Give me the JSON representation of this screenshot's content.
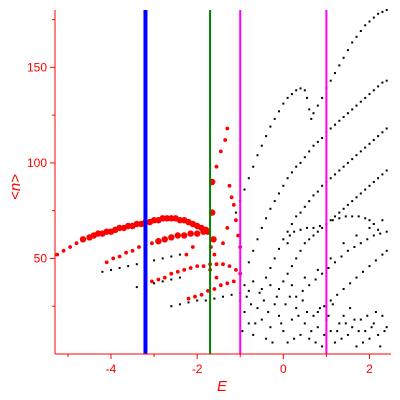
{
  "chart_data": {
    "type": "scatter",
    "title": "",
    "xlabel": "E",
    "ylabel": "<n>",
    "xlim": [
      -5.3,
      2.5
    ],
    "ylim": [
      0,
      180
    ],
    "xticks": [
      -4,
      -2,
      0,
      2
    ],
    "xtick_labels": [
      "-4",
      "-2",
      "0",
      "2"
    ],
    "yticks": [
      50,
      100,
      150
    ],
    "ytick_labels": [
      "50",
      "100",
      "150"
    ],
    "grid": false,
    "legend": "none",
    "colors": {
      "axes": "#ff0000",
      "red_series": "#ff0000",
      "black_series": "#000000",
      "blue_line": "#0000ff",
      "green_line": "#008000",
      "magenta_line": "#ff00ff"
    },
    "vertical_lines": [
      {
        "x": -3.2,
        "color": "blue",
        "width": "thick"
      },
      {
        "x": -1.7,
        "color": "green",
        "width": "thin"
      },
      {
        "x": -1.0,
        "color": "magenta",
        "width": "thin"
      },
      {
        "x": 1.0,
        "color": "magenta",
        "width": "thin"
      }
    ],
    "red_points": [
      [
        -5.25,
        52
      ],
      [
        -5.1,
        54
      ],
      [
        -4.95,
        56
      ],
      [
        -4.8,
        58
      ],
      [
        -4.65,
        60
      ],
      [
        -4.5,
        61
      ],
      [
        -4.4,
        62
      ],
      [
        -4.3,
        63
      ],
      [
        -4.2,
        63
      ],
      [
        -4.1,
        64
      ],
      [
        -4.0,
        64
      ],
      [
        -3.9,
        65
      ],
      [
        -3.8,
        66
      ],
      [
        -3.7,
        66
      ],
      [
        -3.6,
        67
      ],
      [
        -3.5,
        67
      ],
      [
        -3.4,
        68
      ],
      [
        -3.3,
        68
      ],
      [
        -3.2,
        69
      ],
      [
        -3.1,
        69
      ],
      [
        -3.0,
        70
      ],
      [
        -2.9,
        70
      ],
      [
        -2.8,
        71
      ],
      [
        -2.7,
        71
      ],
      [
        -2.6,
        71
      ],
      [
        -2.5,
        71
      ],
      [
        -2.4,
        70
      ],
      [
        -2.3,
        70
      ],
      [
        -2.2,
        69
      ],
      [
        -2.1,
        68
      ],
      [
        -2.0,
        67
      ],
      [
        -1.9,
        66
      ],
      [
        -1.8,
        65
      ],
      [
        -4.1,
        48
      ],
      [
        -3.95,
        50
      ],
      [
        -3.8,
        51
      ],
      [
        -3.65,
        53
      ],
      [
        -3.5,
        54
      ],
      [
        -3.35,
        56
      ],
      [
        -3.2,
        57
      ],
      [
        -3.05,
        58
      ],
      [
        -2.9,
        59
      ],
      [
        -2.75,
        60
      ],
      [
        -2.6,
        61
      ],
      [
        -2.45,
        62
      ],
      [
        -2.3,
        62
      ],
      [
        -2.15,
        63
      ],
      [
        -2.0,
        63
      ],
      [
        -1.85,
        64
      ],
      [
        -1.75,
        64
      ],
      [
        -3.2,
        37
      ],
      [
        -3.05,
        38
      ],
      [
        -2.9,
        39
      ],
      [
        -2.75,
        40
      ],
      [
        -2.6,
        42
      ],
      [
        -2.45,
        43
      ],
      [
        -2.3,
        44
      ],
      [
        -2.15,
        45
      ],
      [
        -2.0,
        46
      ],
      [
        -1.85,
        46
      ],
      [
        -1.7,
        47
      ],
      [
        -1.55,
        47
      ],
      [
        -1.4,
        47
      ],
      [
        -1.25,
        46
      ],
      [
        -1.1,
        44
      ],
      [
        -1.0,
        42
      ],
      [
        -2.2,
        29
      ],
      [
        -2.05,
        30
      ],
      [
        -1.9,
        31
      ],
      [
        -1.75,
        33
      ],
      [
        -1.6,
        34
      ],
      [
        -1.45,
        36
      ],
      [
        -1.3,
        37
      ],
      [
        -1.15,
        38
      ],
      [
        -1.65,
        90
      ],
      [
        -1.55,
        98
      ],
      [
        -1.45,
        106
      ],
      [
        -1.35,
        112
      ],
      [
        -1.3,
        118
      ],
      [
        -1.25,
        88
      ],
      [
        -1.2,
        82
      ],
      [
        -1.15,
        78
      ],
      [
        -1.1,
        70
      ],
      [
        -1.05,
        62
      ],
      [
        -1.0,
        56
      ],
      [
        -1.65,
        74
      ],
      [
        -1.62,
        60
      ],
      [
        -1.68,
        56
      ],
      [
        -1.6,
        52
      ],
      [
        -1.7,
        44
      ],
      [
        -1.55,
        40
      ],
      [
        -2.25,
        52
      ],
      [
        -2.1,
        56
      ],
      [
        -1.4,
        58
      ],
      [
        -1.3,
        66
      ]
    ],
    "black_points": [
      [
        -4.2,
        43
      ],
      [
        -4.0,
        44
      ],
      [
        -3.8,
        45
      ],
      [
        -3.6,
        46
      ],
      [
        -3.4,
        47
      ],
      [
        -3.2,
        48
      ],
      [
        -3.0,
        49
      ],
      [
        -2.8,
        50
      ],
      [
        -2.6,
        51
      ],
      [
        -2.4,
        52
      ],
      [
        -3.4,
        35
      ],
      [
        -3.2,
        36
      ],
      [
        -3.0,
        37
      ],
      [
        -2.8,
        38
      ],
      [
        -2.6,
        39
      ],
      [
        -2.4,
        40
      ],
      [
        -2.6,
        25
      ],
      [
        -2.4,
        26
      ],
      [
        -2.2,
        27
      ],
      [
        -2.0,
        28
      ],
      [
        -1.8,
        28
      ],
      [
        -1.6,
        29
      ],
      [
        -1.4,
        30
      ],
      [
        -1.2,
        31
      ],
      [
        -1.0,
        32
      ],
      [
        -0.8,
        33
      ],
      [
        -1.1,
        74
      ],
      [
        -1.0,
        80
      ],
      [
        -0.9,
        86
      ],
      [
        -0.8,
        92
      ],
      [
        -0.7,
        98
      ],
      [
        -0.6,
        104
      ],
      [
        -0.5,
        109
      ],
      [
        -0.4,
        114
      ],
      [
        -0.3,
        119
      ],
      [
        -0.2,
        123
      ],
      [
        -0.1,
        127
      ],
      [
        0.0,
        131
      ],
      [
        0.1,
        134
      ],
      [
        0.2,
        136
      ],
      [
        0.3,
        138
      ],
      [
        0.4,
        139
      ],
      [
        0.5,
        138
      ],
      [
        0.55,
        134
      ],
      [
        0.6,
        128
      ],
      [
        0.65,
        123
      ],
      [
        0.7,
        126
      ],
      [
        0.8,
        130
      ],
      [
        0.9,
        134
      ],
      [
        1.0,
        139
      ],
      [
        1.1,
        143
      ],
      [
        1.2,
        147
      ],
      [
        1.3,
        151
      ],
      [
        1.4,
        155
      ],
      [
        1.5,
        159
      ],
      [
        1.6,
        163
      ],
      [
        1.7,
        166
      ],
      [
        1.8,
        169
      ],
      [
        1.9,
        172
      ],
      [
        2.0,
        174
      ],
      [
        2.1,
        176
      ],
      [
        2.2,
        178
      ],
      [
        2.3,
        179
      ],
      [
        2.4,
        180
      ],
      [
        -0.8,
        48
      ],
      [
        -0.7,
        54
      ],
      [
        -0.6,
        60
      ],
      [
        -0.5,
        66
      ],
      [
        -0.4,
        71
      ],
      [
        -0.3,
        76
      ],
      [
        -0.2,
        80
      ],
      [
        -0.1,
        84
      ],
      [
        0.0,
        88
      ],
      [
        0.1,
        92
      ],
      [
        0.2,
        95
      ],
      [
        0.3,
        98
      ],
      [
        0.4,
        100
      ],
      [
        0.5,
        103
      ],
      [
        0.6,
        106
      ],
      [
        0.7,
        109
      ],
      [
        0.8,
        111
      ],
      [
        0.9,
        113
      ],
      [
        1.0,
        116
      ],
      [
        1.1,
        118
      ],
      [
        1.2,
        120
      ],
      [
        1.3,
        122
      ],
      [
        1.4,
        124
      ],
      [
        1.5,
        126
      ],
      [
        1.6,
        128
      ],
      [
        1.7,
        130
      ],
      [
        1.8,
        132
      ],
      [
        1.9,
        134
      ],
      [
        2.0,
        136
      ],
      [
        2.1,
        138
      ],
      [
        2.2,
        140
      ],
      [
        2.3,
        142
      ],
      [
        2.4,
        143
      ],
      [
        -0.4,
        40
      ],
      [
        -0.3,
        45
      ],
      [
        -0.2,
        50
      ],
      [
        -0.1,
        55
      ],
      [
        0.0,
        60
      ],
      [
        0.1,
        64
      ],
      [
        0.2,
        68
      ],
      [
        0.3,
        72
      ],
      [
        0.4,
        74
      ],
      [
        0.5,
        77
      ],
      [
        0.6,
        80
      ],
      [
        0.7,
        83
      ],
      [
        0.8,
        85
      ],
      [
        0.9,
        88
      ],
      [
        1.0,
        90
      ],
      [
        1.1,
        92
      ],
      [
        1.2,
        94
      ],
      [
        1.3,
        96
      ],
      [
        1.4,
        98
      ],
      [
        1.5,
        100
      ],
      [
        1.6,
        102
      ],
      [
        1.7,
        104
      ],
      [
        1.8,
        106
      ],
      [
        1.9,
        108
      ],
      [
        2.0,
        110
      ],
      [
        2.1,
        112
      ],
      [
        2.2,
        114
      ],
      [
        2.3,
        116
      ],
      [
        2.4,
        118
      ],
      [
        0.0,
        38
      ],
      [
        0.1,
        42
      ],
      [
        0.2,
        46
      ],
      [
        0.3,
        50
      ],
      [
        0.4,
        54
      ],
      [
        0.5,
        58
      ],
      [
        0.6,
        60
      ],
      [
        0.7,
        62
      ],
      [
        0.8,
        64
      ],
      [
        0.9,
        66
      ],
      [
        1.0,
        68
      ],
      [
        1.1,
        70
      ],
      [
        1.2,
        72
      ],
      [
        1.3,
        74
      ],
      [
        1.4,
        76
      ],
      [
        1.5,
        78
      ],
      [
        1.6,
        80
      ],
      [
        1.7,
        82
      ],
      [
        1.8,
        84
      ],
      [
        1.9,
        86
      ],
      [
        2.0,
        88
      ],
      [
        2.1,
        90
      ],
      [
        2.2,
        92
      ],
      [
        2.3,
        94
      ],
      [
        2.4,
        96
      ],
      [
        0.1,
        58
      ],
      [
        0.15,
        62
      ],
      [
        0.25,
        64
      ],
      [
        0.4,
        65
      ],
      [
        0.55,
        66
      ],
      [
        0.7,
        66
      ],
      [
        0.85,
        67
      ],
      [
        1.0,
        68
      ],
      [
        1.15,
        70
      ],
      [
        1.3,
        71
      ],
      [
        1.45,
        72
      ],
      [
        1.6,
        72
      ],
      [
        1.75,
        72
      ],
      [
        1.9,
        71
      ],
      [
        2.0,
        70
      ],
      [
        2.1,
        68
      ],
      [
        2.2,
        65
      ],
      [
        0.3,
        30
      ],
      [
        0.45,
        33
      ],
      [
        0.6,
        36
      ],
      [
        0.75,
        39
      ],
      [
        0.9,
        42
      ],
      [
        1.05,
        45
      ],
      [
        1.2,
        48
      ],
      [
        1.35,
        51
      ],
      [
        1.5,
        54
      ],
      [
        1.65,
        56
      ],
      [
        1.8,
        58
      ],
      [
        1.95,
        60
      ],
      [
        2.1,
        62
      ],
      [
        2.25,
        63
      ],
      [
        2.4,
        64
      ],
      [
        0.8,
        22
      ],
      [
        0.95,
        25
      ],
      [
        1.1,
        28
      ],
      [
        1.25,
        31
      ],
      [
        1.4,
        34
      ],
      [
        1.55,
        37
      ],
      [
        1.7,
        40
      ],
      [
        1.85,
        43
      ],
      [
        2.0,
        46
      ],
      [
        2.15,
        49
      ],
      [
        2.3,
        52
      ],
      [
        2.4,
        54
      ],
      [
        -1.0,
        28
      ],
      [
        -0.9,
        22
      ],
      [
        -0.8,
        16
      ],
      [
        -0.7,
        10
      ],
      [
        -0.6,
        24
      ],
      [
        -0.5,
        18
      ],
      [
        -0.4,
        8
      ],
      [
        -0.3,
        14
      ],
      [
        -0.2,
        26
      ],
      [
        -0.1,
        20
      ],
      [
        0.0,
        12
      ],
      [
        0.1,
        6
      ],
      [
        0.2,
        18
      ],
      [
        0.3,
        24
      ],
      [
        0.4,
        10
      ],
      [
        0.5,
        16
      ],
      [
        0.6,
        8
      ],
      [
        0.7,
        20
      ],
      [
        0.8,
        14
      ],
      [
        0.9,
        4
      ],
      [
        1.0,
        18
      ],
      [
        1.1,
        12
      ],
      [
        1.2,
        6
      ],
      [
        1.3,
        16
      ],
      [
        1.4,
        20
      ],
      [
        1.5,
        10
      ],
      [
        1.6,
        14
      ],
      [
        1.7,
        4
      ],
      [
        1.8,
        18
      ],
      [
        1.9,
        12
      ],
      [
        2.0,
        8
      ],
      [
        2.1,
        16
      ],
      [
        2.2,
        10
      ],
      [
        2.3,
        20
      ],
      [
        2.4,
        14
      ],
      [
        -0.95,
        12
      ],
      [
        -0.85,
        30
      ],
      [
        -0.75,
        26
      ],
      [
        -0.65,
        16
      ],
      [
        -0.55,
        32
      ],
      [
        -0.45,
        28
      ],
      [
        -0.35,
        22
      ],
      [
        -0.25,
        6
      ],
      [
        -0.15,
        30
      ],
      [
        -0.05,
        16
      ],
      [
        0.05,
        26
      ],
      [
        0.15,
        30
      ],
      [
        0.25,
        8
      ],
      [
        0.35,
        20
      ],
      [
        0.45,
        28
      ],
      [
        0.55,
        22
      ],
      [
        0.65,
        12
      ],
      [
        0.75,
        6
      ],
      [
        0.85,
        24
      ],
      [
        0.95,
        10
      ],
      [
        1.05,
        20
      ],
      [
        1.15,
        26
      ],
      [
        1.25,
        12
      ],
      [
        1.35,
        8
      ],
      [
        1.45,
        16
      ],
      [
        1.55,
        24
      ],
      [
        1.65,
        18
      ],
      [
        1.75,
        12
      ],
      [
        1.85,
        6
      ],
      [
        1.95,
        20
      ],
      [
        2.05,
        14
      ],
      [
        2.15,
        22
      ],
      [
        2.25,
        4
      ],
      [
        2.35,
        12
      ],
      [
        -0.9,
        36
      ],
      [
        -0.7,
        38
      ],
      [
        -0.5,
        34
      ],
      [
        -0.3,
        36
      ],
      [
        -0.1,
        34
      ],
      [
        0.2,
        36
      ],
      [
        0.5,
        40
      ],
      [
        0.8,
        44
      ],
      [
        1.1,
        50
      ],
      [
        1.4,
        58
      ],
      [
        1.7,
        62
      ],
      [
        2.0,
        66
      ],
      [
        2.3,
        70
      ]
    ]
  }
}
